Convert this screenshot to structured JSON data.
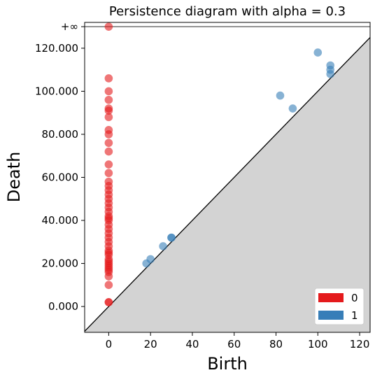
{
  "chart_data": {
    "type": "scatter",
    "title": "Persistence diagram with alpha = 0.3",
    "xlabel": "Birth",
    "ylabel": "Death",
    "xlim": [
      -11.5,
      125
    ],
    "ylim": [
      -12,
      132
    ],
    "x_ticks": [
      0,
      20,
      40,
      60,
      80,
      100,
      120
    ],
    "x_tick_labels": [
      "0",
      "20",
      "40",
      "60",
      "80",
      "100",
      "120"
    ],
    "y_ticks": [
      0,
      20,
      40,
      60,
      80,
      100,
      120
    ],
    "y_tick_labels": [
      "0.000",
      "20.000",
      "40.000",
      "60.000",
      "80.000",
      "100.000",
      "120.000"
    ],
    "infinity_value": 130,
    "infinity_label": "+∞",
    "legend_position": "lower-right",
    "series": [
      {
        "name": "0",
        "color": "#e41a1c",
        "points": [
          [
            0,
            130
          ],
          [
            0,
            106
          ],
          [
            0,
            100
          ],
          [
            0,
            96
          ],
          [
            0,
            92
          ],
          [
            0,
            91
          ],
          [
            0,
            88
          ],
          [
            0,
            82
          ],
          [
            0,
            80
          ],
          [
            0,
            76
          ],
          [
            0,
            72
          ],
          [
            0,
            66
          ],
          [
            0,
            62
          ],
          [
            0,
            58
          ],
          [
            0,
            56
          ],
          [
            0,
            54
          ],
          [
            0,
            52
          ],
          [
            0,
            50
          ],
          [
            0,
            48
          ],
          [
            0,
            46
          ],
          [
            0,
            44
          ],
          [
            0,
            42
          ],
          [
            0,
            41
          ],
          [
            0,
            40
          ],
          [
            0,
            38
          ],
          [
            0,
            36
          ],
          [
            0,
            34
          ],
          [
            0,
            32
          ],
          [
            0,
            30
          ],
          [
            0,
            28
          ],
          [
            0,
            26
          ],
          [
            0,
            25
          ],
          [
            0,
            24
          ],
          [
            0,
            22
          ],
          [
            0,
            21
          ],
          [
            0,
            20
          ],
          [
            0,
            19
          ],
          [
            0,
            18
          ],
          [
            0,
            17
          ],
          [
            0,
            16
          ],
          [
            0,
            14
          ],
          [
            0,
            10
          ],
          [
            0,
            2
          ],
          [
            0,
            2
          ]
        ]
      },
      {
        "name": "1",
        "color": "#377eb8",
        "points": [
          [
            18,
            20
          ],
          [
            20,
            22
          ],
          [
            26,
            28
          ],
          [
            30,
            32
          ],
          [
            30,
            32
          ],
          [
            82,
            98
          ],
          [
            88,
            92
          ],
          [
            100,
            118
          ],
          [
            106,
            112
          ],
          [
            106,
            110
          ],
          [
            106,
            108
          ]
        ]
      }
    ]
  }
}
